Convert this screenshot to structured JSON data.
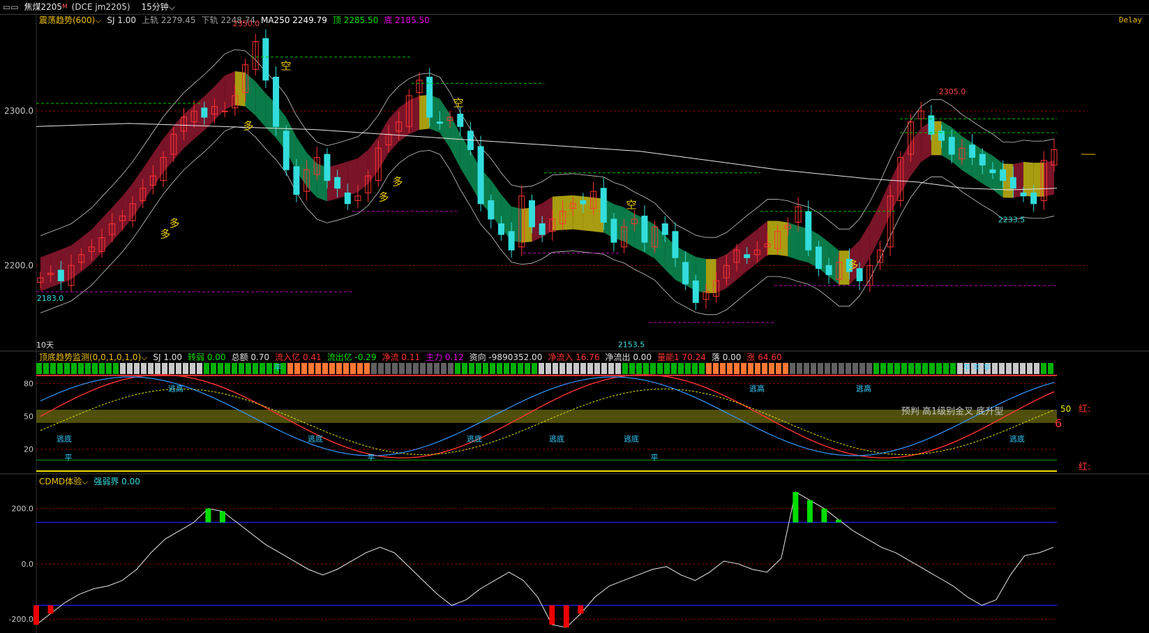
{
  "topbar": {
    "layout_icon": "▭▭",
    "symbol": "焦煤2205",
    "symbol_sup": "M",
    "code": "(DCE jm2205)",
    "period": "15分钟",
    "period_icon": "chevron-down-icon"
  },
  "delay_label": "Delay",
  "colors": {
    "bg": "#000000",
    "up": "#ff3333",
    "down": "#33dddd",
    "grid": "#8b0000",
    "ma": "#e8e8e8",
    "green": "#00c060",
    "yellow": "#c8c800",
    "magenta": "#e000e0"
  },
  "main": {
    "legend": [
      {
        "text": "震荡趋势(600)",
        "color": "#f0c000",
        "dropdown": true
      },
      {
        "text": "SJ 1.00",
        "color": "#e0e0e0"
      },
      {
        "text": "上轨 2279.45",
        "color": "#a0a0a0"
      },
      {
        "text": "下轨 2248.74",
        "color": "#a0a0a0"
      },
      {
        "text": "MA250 2249.79",
        "color": "#ffffff"
      },
      {
        "text": "顶 2285.50",
        "color": "#00e000"
      },
      {
        "text": "底 2185.50",
        "color": "#e000e0"
      }
    ],
    "y_ticks": [
      {
        "v": 2300,
        "label": "2300.0"
      },
      {
        "v": 2200,
        "label": "2200.0"
      }
    ],
    "y_range": [
      2145,
      2362
    ],
    "labels": [
      {
        "text": "2350.0",
        "color": "#ff4444",
        "x": 353,
        "y": 2355
      },
      {
        "text": "2305.0",
        "color": "#ff4444",
        "x": 1365,
        "y": 2311
      },
      {
        "text": "2183.0",
        "color": "#33dddd",
        "x": 72,
        "y": 2177
      },
      {
        "text": "2153.5",
        "color": "#33dddd",
        "x": 905,
        "y": 2147
      },
      {
        "text": "2233.5",
        "color": "#33dddd",
        "x": 1450,
        "y": 2228
      }
    ],
    "markers": [
      {
        "text": "空",
        "x": 410,
        "y": 2327
      },
      {
        "text": "多",
        "x": 356,
        "y": 2288
      },
      {
        "text": "空",
        "x": 657,
        "y": 2303
      },
      {
        "text": "多",
        "x": 570,
        "y": 2252
      },
      {
        "text": "多",
        "x": 550,
        "y": 2242
      },
      {
        "text": "空",
        "x": 905,
        "y": 2237
      },
      {
        "text": "多",
        "x": 250,
        "y": 2225
      },
      {
        "text": "多",
        "x": 237,
        "y": 2218
      },
      {
        "text": "多",
        "x": 1223,
        "y": 2198
      }
    ],
    "period_note": "10天"
  },
  "sub1": {
    "legend": [
      {
        "text": "顶底趋势监测(0,0,1,0,1,0)",
        "color": "#f0c000",
        "dropdown": true
      },
      {
        "text": "SJ 1.00",
        "color": "#e0e0e0"
      },
      {
        "text": "转弱 0.00",
        "color": "#00e000"
      },
      {
        "text": "总额 0.70",
        "color": "#e0e0e0"
      },
      {
        "text": "流入亿 0.41",
        "color": "#ff3333"
      },
      {
        "text": "流出亿 -0.29",
        "color": "#00e000"
      },
      {
        "text": "净流 0.11",
        "color": "#ff3333"
      },
      {
        "text": "主力 0.12",
        "color": "#e000e0"
      },
      {
        "text": "资向 -9890352.00",
        "color": "#e0e0e0"
      },
      {
        "text": "净流入 16.76",
        "color": "#ff3333"
      },
      {
        "text": "净流出 0.00",
        "color": "#e0e0e0"
      },
      {
        "text": "量能1 70.24",
        "color": "#ff3333"
      },
      {
        "text": "落 0.00",
        "color": "#e0e0e0"
      },
      {
        "text": "涨 64.60",
        "color": "#ff3333"
      }
    ],
    "y_ticks": [
      {
        "v": 80,
        "label": "80"
      },
      {
        "v": 50,
        "label": "50"
      },
      {
        "v": 20,
        "label": "20"
      }
    ],
    "y_range": [
      0,
      100
    ],
    "tags": [
      {
        "text": "逃高",
        "x": 252,
        "y": 73
      },
      {
        "text": "逃底",
        "x": 92,
        "y": 27
      },
      {
        "text": "平",
        "x": 98,
        "y": 10
      },
      {
        "text": "逃底",
        "x": 452,
        "y": 27
      },
      {
        "text": "平",
        "x": 532,
        "y": 10
      },
      {
        "text": "逃底",
        "x": 680,
        "y": 27
      },
      {
        "text": "逃底",
        "x": 798,
        "y": 27
      },
      {
        "text": "逃底",
        "x": 905,
        "y": 27
      },
      {
        "text": "平",
        "x": 938,
        "y": 10
      },
      {
        "text": "逃高",
        "x": 1085,
        "y": 73
      },
      {
        "text": "逃高",
        "x": 1238,
        "y": 73
      },
      {
        "text": "逃底",
        "x": 1458,
        "y": 27
      },
      {
        "text": "平",
        "x": 398,
        "y": 92
      },
      {
        "text": "平 平 平",
        "x": 1400,
        "y": 92
      }
    ],
    "predict": "预判 高1级别金叉 底升型",
    "value50": "50",
    "value6": "6",
    "red_label": "红:",
    "red_label2": "红:"
  },
  "sub2": {
    "legend": [
      {
        "text": "CDMD体验",
        "color": "#f0c000",
        "dropdown": true
      },
      {
        "text": "强弱界 0.00",
        "color": "#33dddd"
      }
    ],
    "y_ticks": [
      {
        "v": 200,
        "label": "200.0"
      },
      {
        "v": 0,
        "label": "0.0"
      },
      {
        "v": -200,
        "label": "-200.0"
      }
    ],
    "y_range": [
      -250,
      280
    ]
  },
  "chart_data": {
    "type": "line",
    "series": [
      {
        "values": [
          2192,
          2195,
          2190,
          2200,
          2207,
          2212,
          2218,
          2227,
          2232,
          2240,
          2250,
          2258,
          2270,
          2285,
          2296,
          2300,
          2296,
          2303,
          2300,
          2310,
          2330,
          2345,
          2320,
          2290,
          2262,
          2246,
          2262,
          2270,
          2255,
          2250,
          2240,
          2245,
          2258,
          2276,
          2285,
          2293,
          2310,
          2320,
          2296,
          2292,
          2296,
          2290,
          2275,
          2240,
          2230,
          2220,
          2210,
          2245,
          2225,
          2220,
          2230,
          2235,
          2240,
          2240,
          2248,
          2228,
          2215,
          2225,
          2230,
          2215,
          2225,
          2220,
          2205,
          2188,
          2176,
          2183,
          2190,
          2200,
          2210,
          2205,
          2210,
          2214,
          2222,
          2226,
          2238,
          2210,
          2198,
          2194,
          2202,
          2196,
          2190,
          2200,
          2210,
          2245,
          2270,
          2293,
          2300,
          2285,
          2281,
          2272,
          2276,
          2270,
          2265,
          2260,
          2255,
          2250,
          2245,
          2240,
          2268,
          2275
        ]
      }
    ]
  }
}
